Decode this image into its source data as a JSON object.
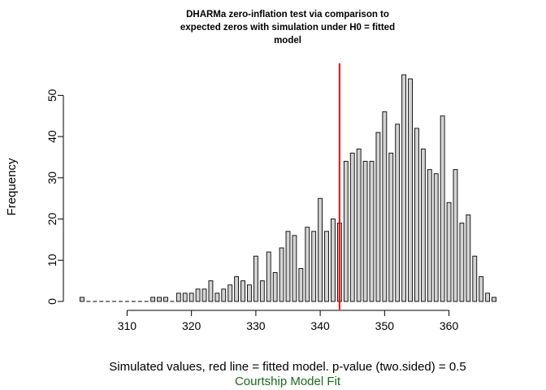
{
  "chart_data": {
    "type": "bar",
    "title_lines": [
      "DHARMa zero-inflation test via comparison to",
      "expected zeros with simulation under H0 = fitted",
      "model"
    ],
    "xlabel": "Simulated values, red line = fitted model. p-value (two.sided) = 0.5",
    "subtitle": "Courtship Model Fit",
    "ylabel": "Frequency",
    "x_ticks": [
      310,
      320,
      330,
      340,
      350,
      360
    ],
    "y_ticks": [
      0,
      10,
      20,
      30,
      40,
      50
    ],
    "xlim": [
      303,
      367
    ],
    "ylim": [
      0,
      55
    ],
    "reference_line": {
      "x": 343,
      "color": "#ff0000"
    },
    "bar_color": "#d3d3d3",
    "x": [
      303,
      304,
      305,
      306,
      307,
      308,
      309,
      310,
      311,
      312,
      313,
      314,
      315,
      316,
      317,
      318,
      319,
      320,
      321,
      322,
      323,
      324,
      325,
      326,
      327,
      328,
      329,
      330,
      331,
      332,
      333,
      334,
      335,
      336,
      337,
      338,
      339,
      340,
      341,
      342,
      343,
      344,
      345,
      346,
      347,
      348,
      349,
      350,
      351,
      352,
      353,
      354,
      355,
      356,
      357,
      358,
      359,
      360,
      361,
      362,
      363,
      364,
      365,
      366,
      367
    ],
    "values": [
      1,
      0,
      0,
      0,
      0,
      0,
      0,
      0,
      0,
      0,
      0,
      1,
      1,
      1,
      0,
      2,
      2,
      2,
      3,
      3,
      5,
      2,
      3,
      4,
      6,
      5,
      4,
      11,
      5,
      12,
      7,
      13,
      17,
      16,
      8,
      18,
      17,
      25,
      17,
      20,
      19,
      34,
      36,
      37,
      34,
      34,
      41,
      46,
      36,
      43,
      55,
      54,
      42,
      37,
      32,
      31,
      45,
      24,
      32,
      19,
      21,
      11,
      6,
      2,
      1
    ]
  }
}
